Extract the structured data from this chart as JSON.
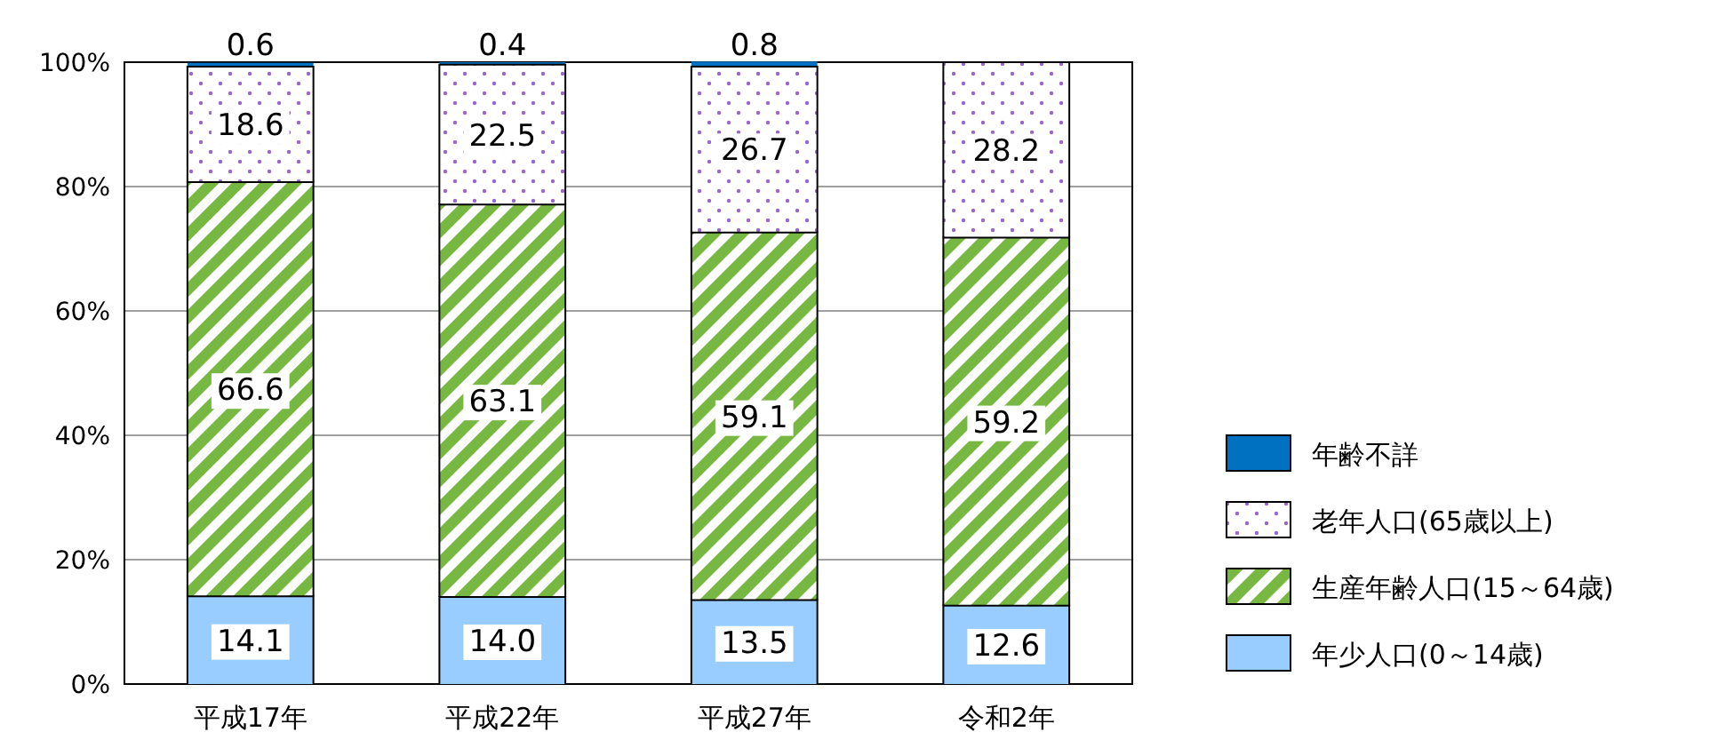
{
  "chart_data": {
    "type": "bar",
    "stacked": true,
    "categories": [
      "平成17年",
      "平成22年",
      "平成27年",
      "令和2年"
    ],
    "series": [
      {
        "name": "年少人口(0～14歳)",
        "color": "#99ccff",
        "values": [
          14.1,
          14.0,
          13.5,
          12.6
        ],
        "value_labels": [
          "14.1",
          "14.0",
          "13.5",
          "12.6"
        ]
      },
      {
        "name": "生産年齢人口(15～64歳)",
        "color": "#77b843",
        "values": [
          66.6,
          63.1,
          59.1,
          59.2
        ]
      },
      {
        "name": "老年人口(65歳以上)",
        "color": "#9966cc",
        "values": [
          18.6,
          22.5,
          26.7,
          28.2
        ]
      },
      {
        "name": "年齢不詳",
        "color": "#0070c0",
        "values": [
          0.6,
          0.4,
          0.8,
          null
        ]
      }
    ],
    "ylim": [
      0,
      100
    ],
    "yticks": [
      {
        "value": 0,
        "label": "0%"
      },
      {
        "value": 20,
        "label": "20%"
      },
      {
        "value": 40,
        "label": "40%"
      },
      {
        "value": 60,
        "label": "60%"
      },
      {
        "value": 80,
        "label": "80%"
      },
      {
        "value": 100,
        "label": "100%"
      }
    ],
    "grid": "y",
    "legend": "right",
    "data_labels": true
  }
}
